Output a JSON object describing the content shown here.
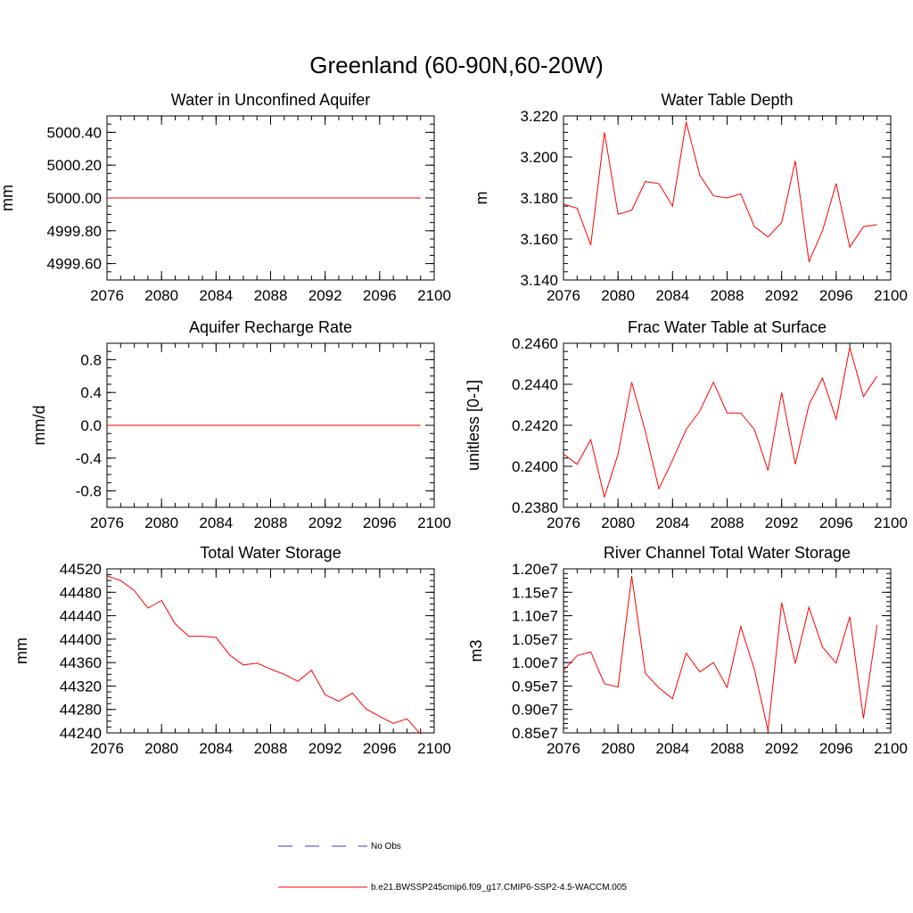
{
  "figure": {
    "title": "Greenland (60-90N,60-20W)"
  },
  "legend": {
    "items": [
      {
        "label": "No Obs",
        "color": "#3b3bd6",
        "style": "dashed"
      },
      {
        "label": "b.e21.BWSSP245cmip6.f09_g17.CMIP6-SSP2-4.5-WACCM.005",
        "color": "#ff0000",
        "style": "solid"
      }
    ]
  },
  "chart_data": [
    {
      "type": "line",
      "title": "Water in Unconfined Aquifer",
      "xlabel": "",
      "ylabel": "mm",
      "xlim": [
        2076,
        2100
      ],
      "ylim": [
        4999.5,
        5000.5
      ],
      "xticks": [
        "2076",
        "2080",
        "2084",
        "2088",
        "2092",
        "2096",
        "2100"
      ],
      "yticks": [
        {
          "value": 4999.6,
          "label": "4999.60"
        },
        {
          "value": 4999.8,
          "label": "4999.80"
        },
        {
          "value": 5000.0,
          "label": "5000.00"
        },
        {
          "value": 5000.2,
          "label": "5000.20"
        },
        {
          "value": 5000.4,
          "label": "5000.40"
        }
      ],
      "yminor": 0.05,
      "x": [
        2076,
        2077,
        2078,
        2079,
        2080,
        2081,
        2082,
        2083,
        2084,
        2085,
        2086,
        2087,
        2088,
        2089,
        2090,
        2091,
        2092,
        2093,
        2094,
        2095,
        2096,
        2097,
        2098,
        2099
      ],
      "values": [
        5000,
        5000,
        5000,
        5000,
        5000,
        5000,
        5000,
        5000,
        5000,
        5000,
        5000,
        5000,
        5000,
        5000,
        5000,
        5000,
        5000,
        5000,
        5000,
        5000,
        5000,
        5000,
        5000,
        5000
      ],
      "color": "#ff0000"
    },
    {
      "type": "line",
      "title": "Water Table Depth",
      "xlabel": "",
      "ylabel": "m",
      "xlim": [
        2076,
        2100
      ],
      "ylim": [
        3.14,
        3.22
      ],
      "xticks": [
        "2076",
        "2080",
        "2084",
        "2088",
        "2092",
        "2096",
        "2100"
      ],
      "yticks": [
        {
          "value": 3.14,
          "label": "3.140"
        },
        {
          "value": 3.16,
          "label": "3.160"
        },
        {
          "value": 3.18,
          "label": "3.180"
        },
        {
          "value": 3.2,
          "label": "3.200"
        },
        {
          "value": 3.22,
          "label": "3.220"
        }
      ],
      "yminor": 0.004,
      "x": [
        2076,
        2077,
        2078,
        2079,
        2080,
        2081,
        2082,
        2083,
        2084,
        2085,
        2086,
        2087,
        2088,
        2089,
        2090,
        2091,
        2092,
        2093,
        2094,
        2095,
        2096,
        2097,
        2098,
        2099
      ],
      "values": [
        3.177,
        3.175,
        3.157,
        3.212,
        3.172,
        3.174,
        3.188,
        3.187,
        3.176,
        3.217,
        3.191,
        3.181,
        3.18,
        3.182,
        3.166,
        3.161,
        3.168,
        3.198,
        3.149,
        3.164,
        3.187,
        3.156,
        3.166,
        3.167
      ],
      "color": "#ff0000"
    },
    {
      "type": "line",
      "title": "Aquifer Recharge Rate",
      "xlabel": "",
      "ylabel": "mm/d",
      "xlim": [
        2076,
        2100
      ],
      "ylim": [
        -1.0,
        1.0
      ],
      "xticks": [
        "2076",
        "2080",
        "2084",
        "2088",
        "2092",
        "2096",
        "2100"
      ],
      "yticks": [
        {
          "value": -0.8,
          "label": "-0.8"
        },
        {
          "value": -0.4,
          "label": "-0.4"
        },
        {
          "value": 0.0,
          "label": "0.0"
        },
        {
          "value": 0.4,
          "label": "0.4"
        },
        {
          "value": 0.8,
          "label": "0.8"
        }
      ],
      "yminor": 0.1,
      "x": [
        2076,
        2077,
        2078,
        2079,
        2080,
        2081,
        2082,
        2083,
        2084,
        2085,
        2086,
        2087,
        2088,
        2089,
        2090,
        2091,
        2092,
        2093,
        2094,
        2095,
        2096,
        2097,
        2098,
        2099
      ],
      "values": [
        0,
        0,
        0,
        0,
        0,
        0,
        0,
        0,
        0,
        0,
        0,
        0,
        0,
        0,
        0,
        0,
        0,
        0,
        0,
        0,
        0,
        0,
        0,
        0
      ],
      "color": "#ff0000"
    },
    {
      "type": "line",
      "title": "Frac Water Table at Surface",
      "xlabel": "",
      "ylabel": "unitless [0-1]",
      "xlim": [
        2076,
        2100
      ],
      "ylim": [
        0.238,
        0.246
      ],
      "xticks": [
        "2076",
        "2080",
        "2084",
        "2088",
        "2092",
        "2096",
        "2100"
      ],
      "yticks": [
        {
          "value": 0.238,
          "label": "0.2380"
        },
        {
          "value": 0.24,
          "label": "0.2400"
        },
        {
          "value": 0.242,
          "label": "0.2420"
        },
        {
          "value": 0.244,
          "label": "0.2440"
        },
        {
          "value": 0.246,
          "label": "0.2460"
        }
      ],
      "yminor": 0.0004,
      "x": [
        2076,
        2077,
        2078,
        2079,
        2080,
        2081,
        2082,
        2083,
        2084,
        2085,
        2086,
        2087,
        2088,
        2089,
        2090,
        2091,
        2092,
        2093,
        2094,
        2095,
        2096,
        2097,
        2098,
        2099
      ],
      "values": [
        0.2406,
        0.2401,
        0.2413,
        0.2385,
        0.2406,
        0.2441,
        0.2417,
        0.2389,
        0.2403,
        0.2418,
        0.2427,
        0.2441,
        0.2426,
        0.2426,
        0.2418,
        0.2398,
        0.2436,
        0.2401,
        0.243,
        0.2443,
        0.2423,
        0.2458,
        0.2434,
        0.2444
      ],
      "color": "#ff0000"
    },
    {
      "type": "line",
      "title": "Total Water Storage",
      "xlabel": "",
      "ylabel": "mm",
      "xlim": [
        2076,
        2100
      ],
      "ylim": [
        44240,
        44520
      ],
      "xticks": [
        "2076",
        "2080",
        "2084",
        "2088",
        "2092",
        "2096",
        "2100"
      ],
      "yticks": [
        {
          "value": 44240,
          "label": "44240"
        },
        {
          "value": 44280,
          "label": "44280"
        },
        {
          "value": 44320,
          "label": "44320"
        },
        {
          "value": 44360,
          "label": "44360"
        },
        {
          "value": 44400,
          "label": "44400"
        },
        {
          "value": 44440,
          "label": "44440"
        },
        {
          "value": 44480,
          "label": "44480"
        },
        {
          "value": 44520,
          "label": "44520"
        }
      ],
      "yminor": 10,
      "x": [
        2076,
        2077,
        2078,
        2079,
        2080,
        2081,
        2082,
        2083,
        2084,
        2085,
        2086,
        2087,
        2088,
        2089,
        2090,
        2091,
        2092,
        2093,
        2094,
        2095,
        2096,
        2097,
        2098,
        2099
      ],
      "values": [
        44508,
        44500,
        44483,
        44453,
        44466,
        44426,
        44405,
        44405,
        44403,
        44373,
        44356,
        44359,
        44349,
        44340,
        44328,
        44347,
        44305,
        44294,
        44308,
        44281,
        44268,
        44256,
        44264,
        44238
      ],
      "color": "#ff0000"
    },
    {
      "type": "line",
      "title": "River Channel Total Water Storage",
      "xlabel": "",
      "ylabel": "m3",
      "xlim": [
        2076,
        2100
      ],
      "ylim": [
        8500000,
        12000000
      ],
      "xticks": [
        "2076",
        "2080",
        "2084",
        "2088",
        "2092",
        "2096",
        "2100"
      ],
      "yticks": [
        {
          "value": 8500000,
          "label": "0.85e7"
        },
        {
          "value": 9000000,
          "label": "0.90e7"
        },
        {
          "value": 9500000,
          "label": "0.95e7"
        },
        {
          "value": 10000000,
          "label": "1.00e7"
        },
        {
          "value": 10500000,
          "label": "1.05e7"
        },
        {
          "value": 11000000,
          "label": "1.10e7"
        },
        {
          "value": 11500000,
          "label": "1.15e7"
        },
        {
          "value": 12000000,
          "label": "1.20e7"
        }
      ],
      "yminor": 100000,
      "x": [
        2076,
        2077,
        2078,
        2079,
        2080,
        2081,
        2082,
        2083,
        2084,
        2085,
        2086,
        2087,
        2088,
        2089,
        2090,
        2091,
        2092,
        2093,
        2094,
        2095,
        2096,
        2097,
        2098,
        2099
      ],
      "values": [
        9830000,
        10150000,
        10230000,
        9550000,
        9480000,
        11850000,
        9770000,
        9460000,
        9230000,
        10200000,
        9800000,
        10000000,
        9470000,
        10770000,
        9850000,
        8550000,
        11280000,
        9980000,
        11180000,
        10330000,
        9990000,
        10980000,
        8810000,
        10800000
      ],
      "color": "#ff0000"
    }
  ]
}
